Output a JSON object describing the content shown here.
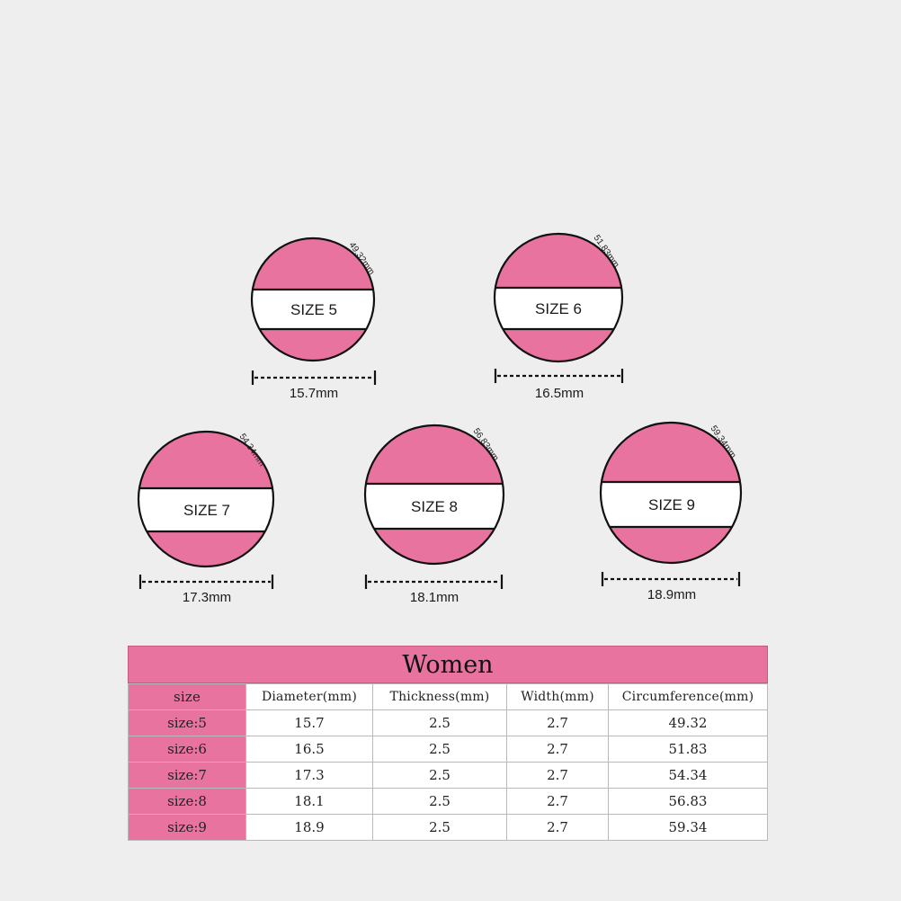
{
  "rings": [
    {
      "size_label": "SIZE 5",
      "circumference_label": "49.32mm",
      "diameter_label": "15.7mm"
    },
    {
      "size_label": "SIZE 6",
      "circumference_label": "51.83mm",
      "diameter_label": "16.5mm"
    },
    {
      "size_label": "SIZE 7",
      "circumference_label": "54.34mm",
      "diameter_label": "17.3mm"
    },
    {
      "size_label": "SIZE 8",
      "circumference_label": "56.83mm",
      "diameter_label": "18.1mm"
    },
    {
      "size_label": "SIZE 9",
      "circumference_label": "59.34mm",
      "diameter_label": "18.9mm"
    }
  ],
  "table": {
    "title": "Women",
    "headers": [
      "size",
      "Diameter(mm)",
      "Thickness(mm)",
      "Width(mm)",
      "Circumference(mm)"
    ],
    "rows": [
      [
        "size:5",
        "15.7",
        "2.5",
        "2.7",
        "49.32"
      ],
      [
        "size:6",
        "16.5",
        "2.5",
        "2.7",
        "51.83"
      ],
      [
        "size:7",
        "17.3",
        "2.5",
        "2.7",
        "54.34"
      ],
      [
        "size:8",
        "18.1",
        "2.5",
        "2.7",
        "56.83"
      ],
      [
        "size:9",
        "18.9",
        "2.5",
        "2.7",
        "59.34"
      ]
    ]
  },
  "colors": {
    "accent_pink": "#e9739f",
    "background": "#efeeef"
  }
}
